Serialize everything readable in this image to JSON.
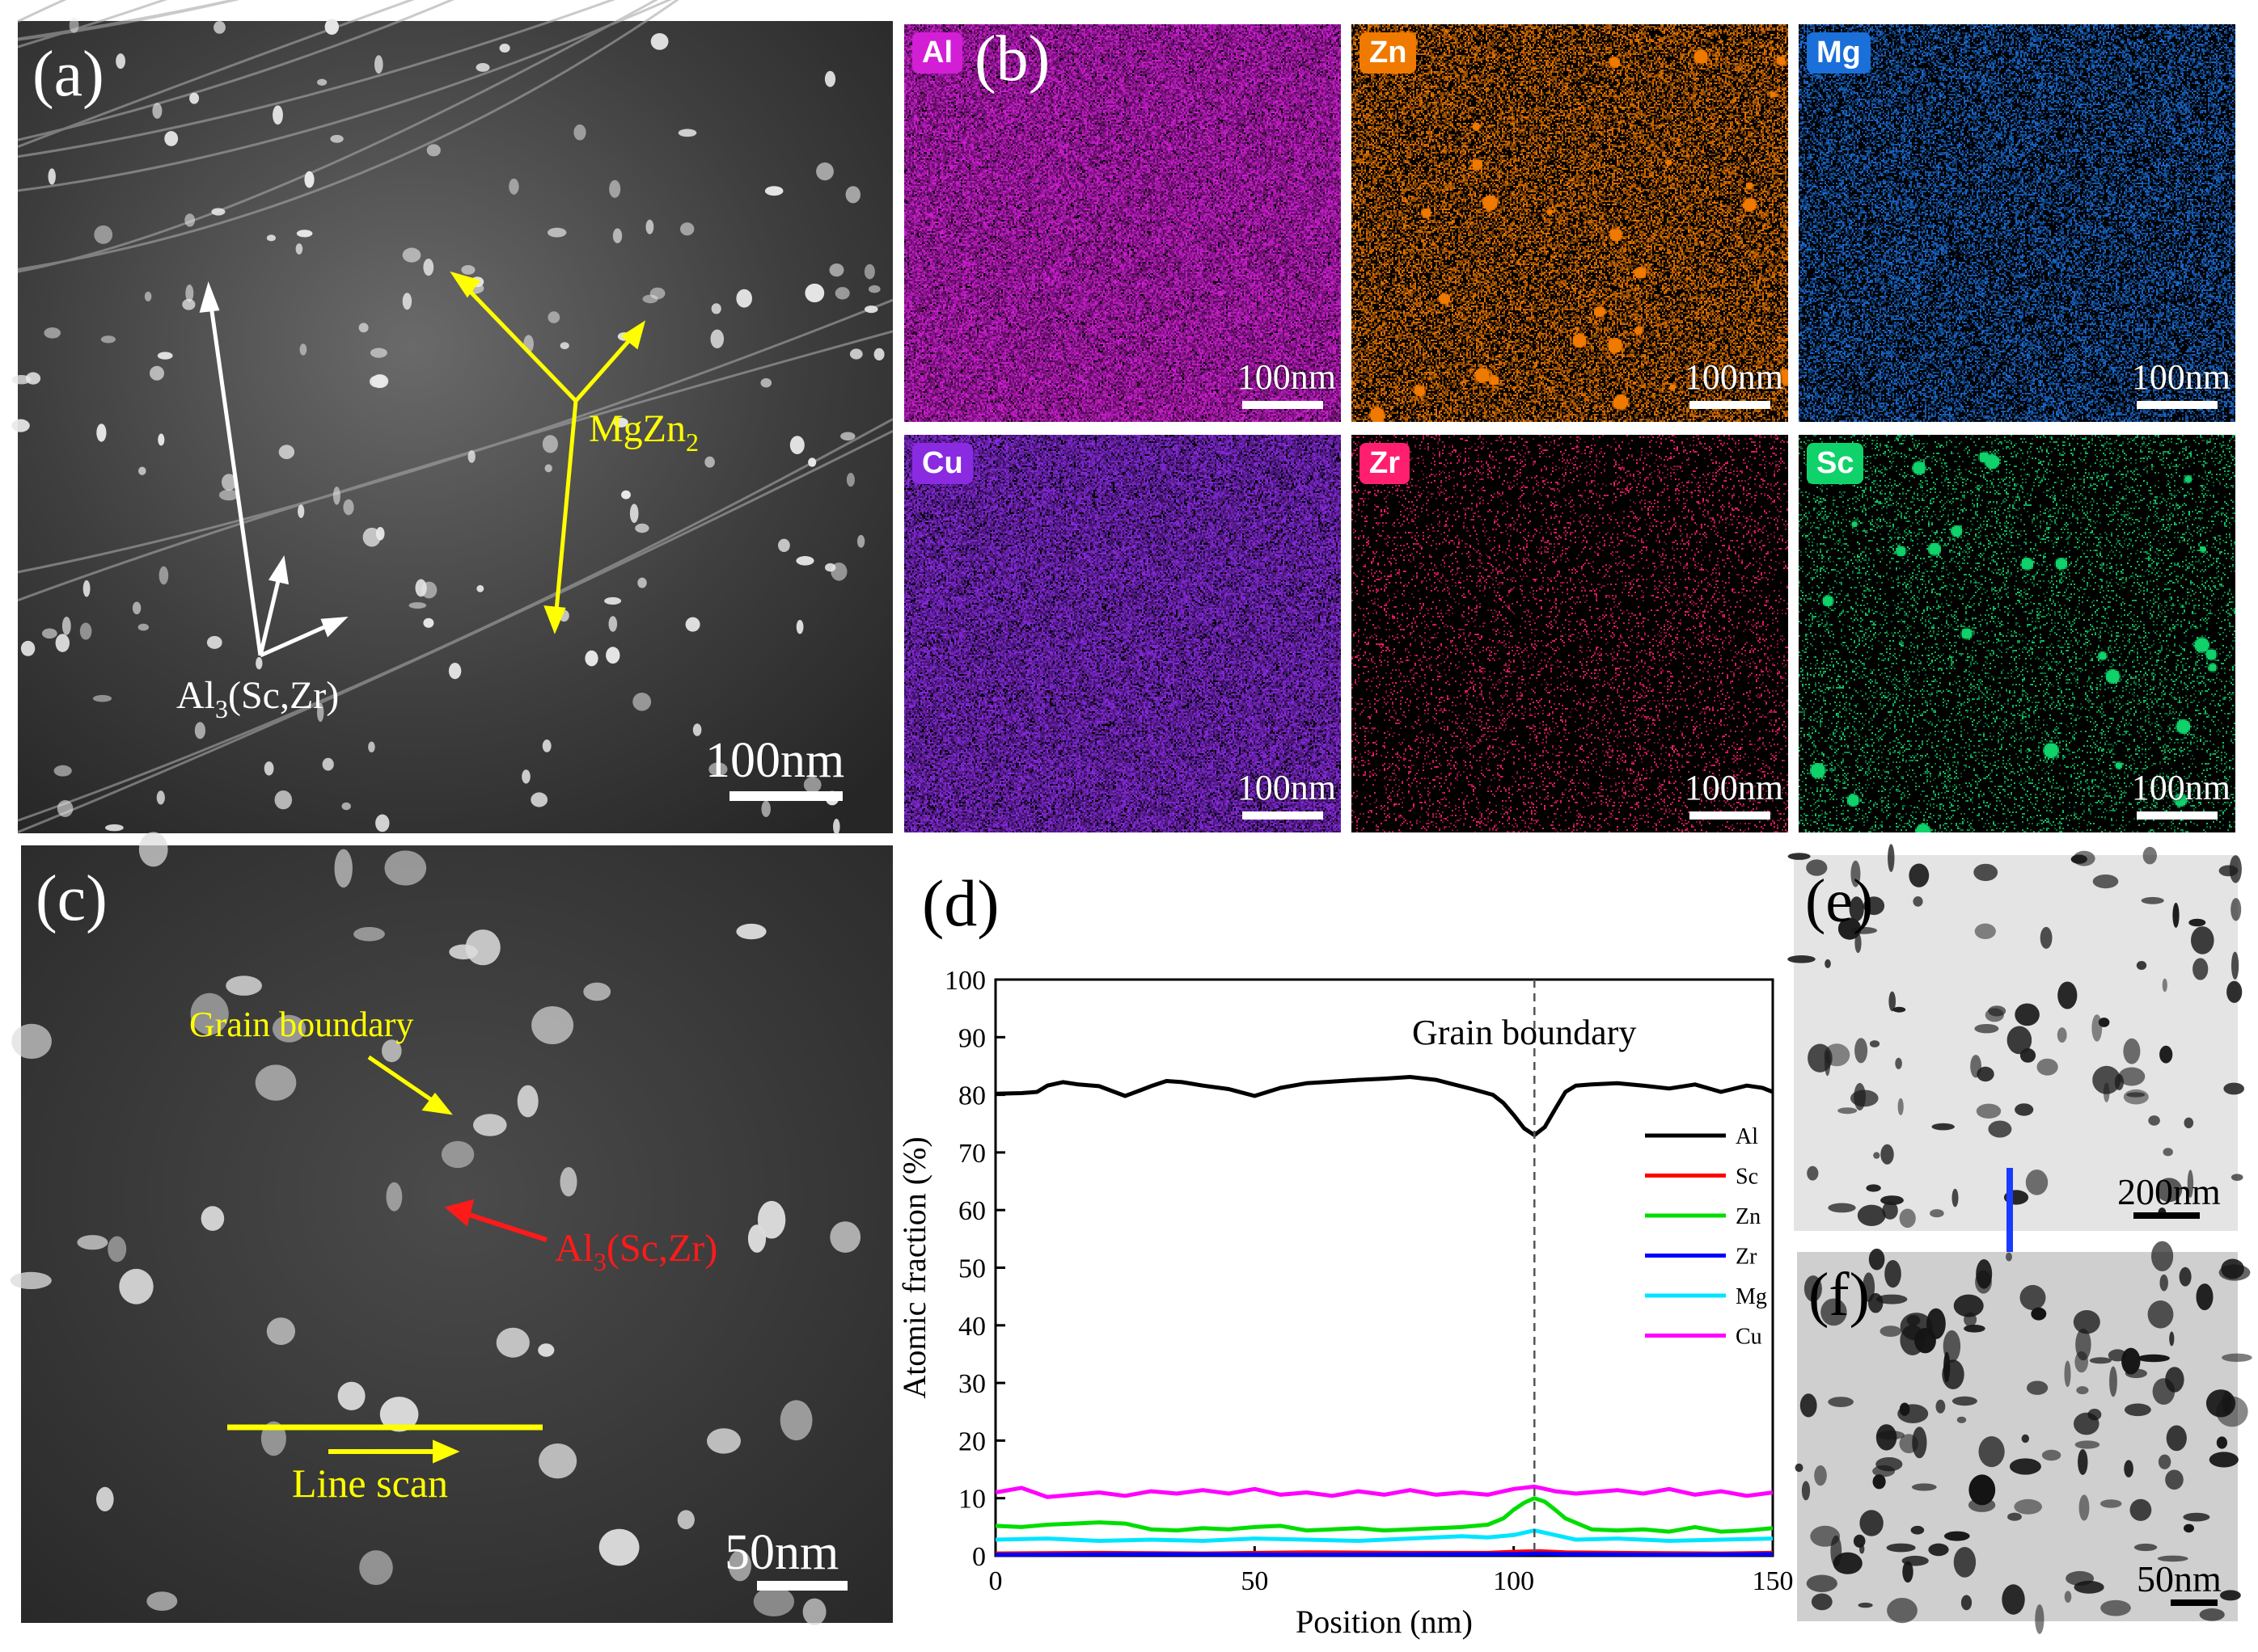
{
  "panel_a": {
    "label": "(a)",
    "annotation_mgzn2": "MgZn",
    "annotation_mgzn2_sub": "2",
    "annotation_al3": "Al",
    "annotation_al3_sub": "3",
    "annotation_al3_rest": "(Sc,Zr)",
    "scale": "100nm"
  },
  "panel_b": {
    "label": "(b)",
    "maps": [
      {
        "element": "Al",
        "color": "#d21fd6",
        "scale": "100nm"
      },
      {
        "element": "Zn",
        "color": "#f07a00",
        "scale": "100nm"
      },
      {
        "element": "Mg",
        "color": "#1a6fd8",
        "scale": "100nm"
      },
      {
        "element": "Cu",
        "color": "#8a2be2",
        "scale": "100nm"
      },
      {
        "element": "Zr",
        "color": "#ff1f6e",
        "scale": "100nm"
      },
      {
        "element": "Sc",
        "color": "#10d26a",
        "scale": "100nm"
      }
    ]
  },
  "panel_c": {
    "label": "(c)",
    "annotation_gb": "Grain boundary",
    "annotation_al3": "Al",
    "annotation_al3_sub": "3",
    "annotation_al3_rest": "(Sc,Zr)",
    "annotation_scan": "Line scan",
    "scale": "50nm"
  },
  "panel_e": {
    "label": "(e)",
    "scale": "200nm"
  },
  "panel_f": {
    "label": "(f)",
    "scale": "50nm"
  },
  "chart_data": {
    "type": "line",
    "panel_label": "(d)",
    "xlabel": "Position (nm)",
    "ylabel": "Atomic fraction (%)",
    "xlim": [
      0,
      150
    ],
    "ylim": [
      0,
      100
    ],
    "xticks": [
      "0",
      "50",
      "100",
      "150"
    ],
    "yticks": [
      "0",
      "10",
      "20",
      "30",
      "40",
      "50",
      "60",
      "70",
      "80",
      "90",
      "100"
    ],
    "annotation": "Grain boundary",
    "annotation_x": 104,
    "legend_position": "right",
    "series": [
      {
        "name": "Al",
        "color": "#000000",
        "x": [
          0,
          5,
          8,
          10,
          13,
          16,
          20,
          25,
          28,
          30,
          33,
          36,
          40,
          45,
          50,
          55,
          60,
          65,
          70,
          75,
          80,
          85,
          88,
          92,
          96,
          98,
          100,
          102,
          104,
          106,
          108,
          110,
          112,
          115,
          120,
          125,
          130,
          135,
          140,
          145,
          148,
          150
        ],
        "y": [
          80.2,
          80.3,
          80.5,
          81.6,
          82.2,
          81.8,
          81.5,
          79.8,
          80.8,
          81.5,
          82.4,
          82.2,
          81.6,
          81.0,
          79.8,
          81.2,
          82.0,
          82.3,
          82.6,
          82.8,
          83.1,
          82.6,
          81.9,
          81.0,
          80.0,
          78.6,
          76.5,
          74.2,
          73.0,
          74.4,
          77.5,
          80.5,
          81.6,
          81.8,
          82.0,
          81.6,
          81.1,
          81.8,
          80.5,
          81.6,
          81.2,
          80.5
        ]
      },
      {
        "name": "Sc",
        "color": "#ff0000",
        "x": [
          0,
          20,
          40,
          60,
          80,
          95,
          100,
          105,
          110,
          120,
          140,
          150
        ],
        "y": [
          0.4,
          0.5,
          0.4,
          0.6,
          0.5,
          0.5,
          0.7,
          0.8,
          0.6,
          0.5,
          0.4,
          0.5
        ]
      },
      {
        "name": "Zn",
        "color": "#00dd00",
        "x": [
          0,
          5,
          10,
          15,
          20,
          25,
          30,
          35,
          40,
          45,
          50,
          55,
          60,
          65,
          70,
          75,
          80,
          85,
          90,
          95,
          98,
          100,
          102,
          104,
          106,
          108,
          110,
          115,
          120,
          125,
          130,
          135,
          140,
          145,
          150
        ],
        "y": [
          5.2,
          5.0,
          5.4,
          5.6,
          5.8,
          5.6,
          4.6,
          4.4,
          4.8,
          4.6,
          5.0,
          5.2,
          4.4,
          4.6,
          4.8,
          4.4,
          4.6,
          4.8,
          5.0,
          5.4,
          6.5,
          8.0,
          9.2,
          10.0,
          9.4,
          8.0,
          6.5,
          4.6,
          4.4,
          4.6,
          4.2,
          5.0,
          4.2,
          4.4,
          4.8
        ]
      },
      {
        "name": "Zr",
        "color": "#0000ff",
        "x": [
          0,
          30,
          60,
          90,
          100,
          105,
          110,
          130,
          150
        ],
        "y": [
          0.2,
          0.3,
          0.2,
          0.3,
          0.3,
          0.4,
          0.3,
          0.2,
          0.3
        ]
      },
      {
        "name": "Mg",
        "color": "#00e5ff",
        "x": [
          0,
          10,
          20,
          30,
          40,
          50,
          60,
          70,
          80,
          90,
          95,
          100,
          104,
          108,
          112,
          120,
          130,
          140,
          150
        ],
        "y": [
          2.8,
          3.0,
          2.6,
          2.8,
          2.6,
          3.0,
          2.8,
          2.6,
          3.0,
          3.4,
          3.2,
          3.6,
          4.4,
          3.6,
          2.8,
          3.0,
          2.6,
          2.8,
          3.0
        ]
      },
      {
        "name": "Cu",
        "color": "#ff00ff",
        "x": [
          0,
          5,
          10,
          15,
          20,
          25,
          30,
          35,
          40,
          45,
          50,
          55,
          60,
          65,
          70,
          75,
          80,
          85,
          90,
          95,
          100,
          104,
          108,
          112,
          120,
          125,
          130,
          135,
          140,
          145,
          150
        ],
        "y": [
          11.0,
          11.8,
          10.2,
          10.6,
          11.0,
          10.4,
          11.2,
          10.8,
          11.4,
          10.8,
          11.6,
          10.6,
          11.0,
          10.4,
          11.2,
          10.6,
          11.4,
          10.6,
          11.0,
          10.6,
          11.6,
          12.0,
          11.2,
          10.8,
          11.4,
          10.8,
          11.6,
          10.6,
          11.2,
          10.4,
          11.0
        ]
      }
    ]
  }
}
